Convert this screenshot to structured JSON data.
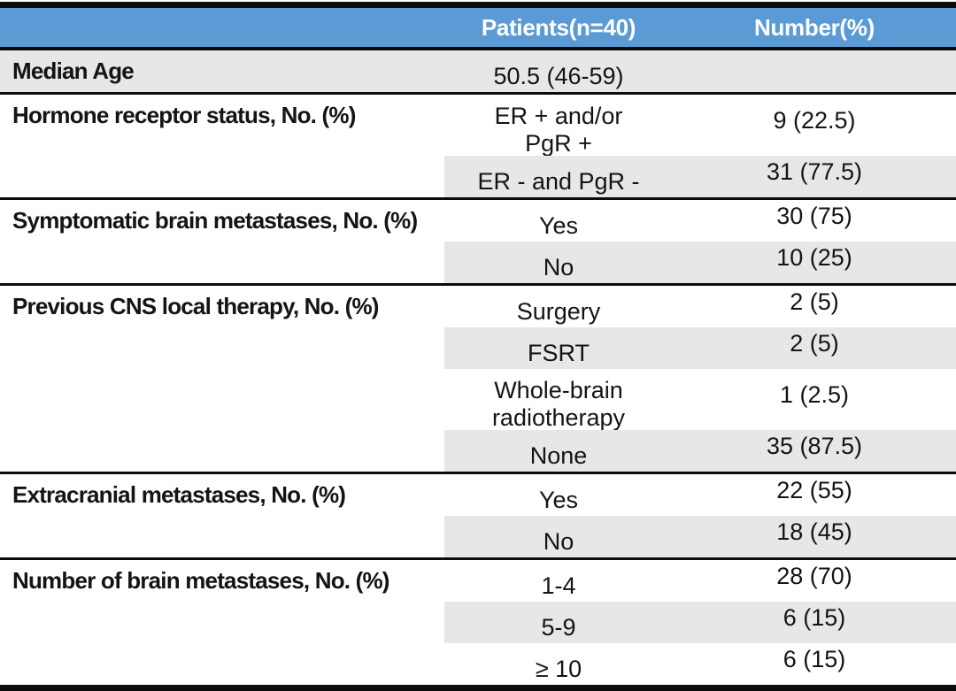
{
  "title": "Patient characteristics table",
  "colors": {
    "header_bg": "#5B9BD5",
    "header_text": "#FFFFFF",
    "band_bg": "#E8E7E7",
    "rule": "#0C0C0C",
    "text": "#141414"
  },
  "header": {
    "label_col": "",
    "patients_col": "Patients(n=40)",
    "number_col": "Number(%)"
  },
  "sections": [
    {
      "label": "Median Age",
      "rows": [
        {
          "patients": "50.5 (46-59)",
          "number": "",
          "shaded": true,
          "shade_full_row": true
        }
      ]
    },
    {
      "label": "Hormone receptor status, No. (%)",
      "rows": [
        {
          "patients": "ER + and/or\nPgR +",
          "number": "9 (22.5)",
          "shaded": false
        },
        {
          "patients": "ER - and PgR -",
          "number": "31 (77.5)",
          "shaded": true
        }
      ]
    },
    {
      "label": "Symptomatic brain metastases, No. (%)",
      "rows": [
        {
          "patients": "Yes",
          "number": "30 (75)",
          "shaded": false
        },
        {
          "patients": "No",
          "number": "10 (25)",
          "shaded": true
        }
      ]
    },
    {
      "label": "Previous CNS local therapy, No. (%)",
      "rows": [
        {
          "patients": "Surgery",
          "number": "2 (5)",
          "shaded": false
        },
        {
          "patients": "FSRT",
          "number": "2 (5)",
          "shaded": true
        },
        {
          "patients": "Whole-brain\nradiotherapy",
          "number": "1 (2.5)",
          "shaded": false
        },
        {
          "patients": "None",
          "number": "35 (87.5)",
          "shaded": true
        }
      ]
    },
    {
      "label": "Extracranial metastases, No. (%)",
      "rows": [
        {
          "patients": "Yes",
          "number": "22 (55)",
          "shaded": false
        },
        {
          "patients": "No",
          "number": "18 (45)",
          "shaded": true
        }
      ]
    },
    {
      "label": "Number of brain metastases, No. (%)",
      "rows": [
        {
          "patients": "1-4",
          "number": "28 (70)",
          "shaded": false
        },
        {
          "patients": "5-9",
          "number": "6 (15)",
          "shaded": true
        },
        {
          "patients": "≥ 10",
          "number": "6 (15)",
          "shaded": false
        }
      ]
    }
  ]
}
